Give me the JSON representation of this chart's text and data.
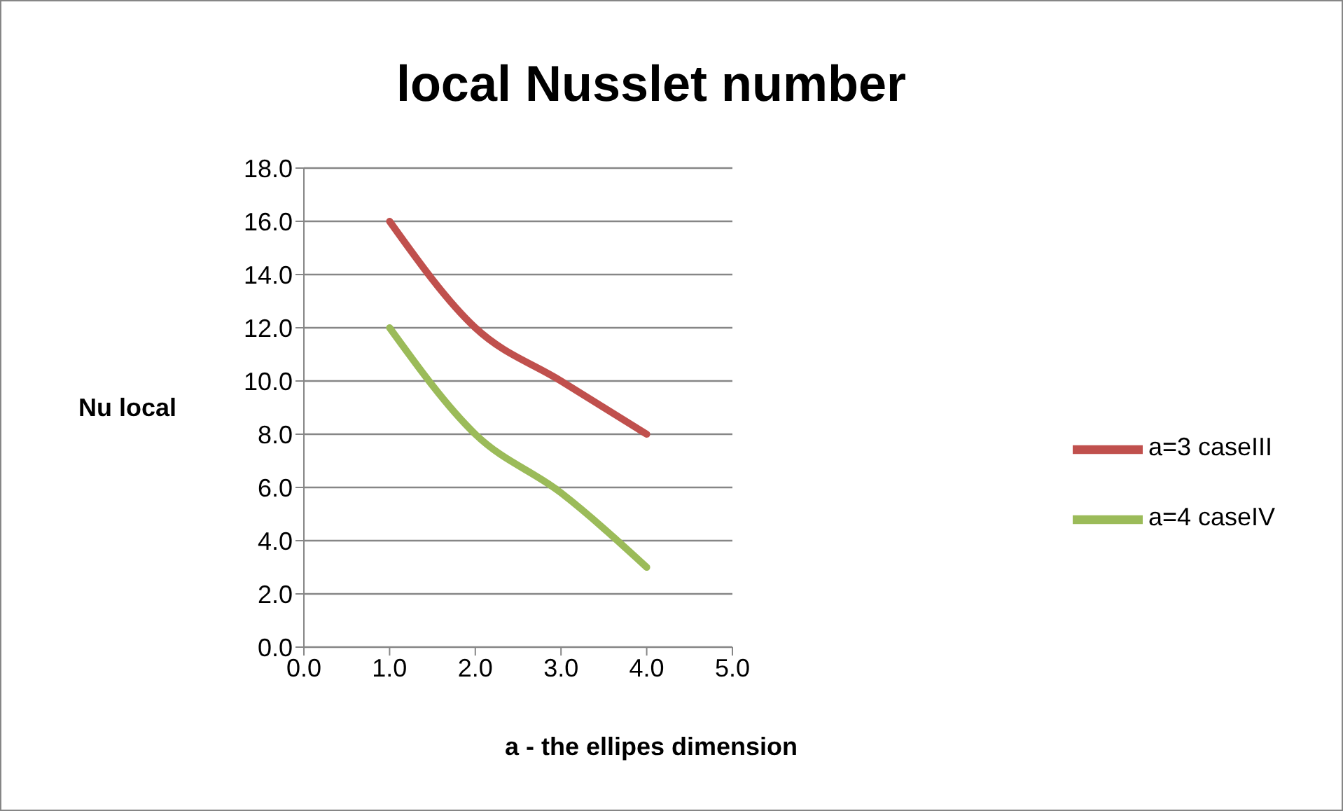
{
  "chart_data": {
    "type": "line",
    "title": "local Nusslet number",
    "xlabel": "a - the ellipes  dimension",
    "ylabel": "Nu local",
    "x": [
      1,
      2,
      3,
      4
    ],
    "series": [
      {
        "name": "a=3 caseIII",
        "color": "#c0504d",
        "values": [
          16,
          12,
          10,
          8
        ]
      },
      {
        "name": "a=4 caseIV",
        "color": "#9bbb59",
        "values": [
          12,
          8,
          5.8,
          3
        ]
      }
    ],
    "xlim": [
      0,
      5
    ],
    "xticks": [
      {
        "value": 0,
        "label": "0.0"
      },
      {
        "value": 1,
        "label": "1.0"
      },
      {
        "value": 2,
        "label": "2.0"
      },
      {
        "value": 3,
        "label": "3.0"
      },
      {
        "value": 4,
        "label": "4.0"
      },
      {
        "value": 5,
        "label": "5.0"
      }
    ],
    "ylim": [
      0,
      18
    ],
    "yticks": [
      {
        "value": 0,
        "label": "0.0"
      },
      {
        "value": 2,
        "label": "2.0"
      },
      {
        "value": 4,
        "label": "4.0"
      },
      {
        "value": 6,
        "label": "6.0"
      },
      {
        "value": 8,
        "label": "8.0"
      },
      {
        "value": 10,
        "label": "10.0"
      },
      {
        "value": 12,
        "label": "12.0"
      },
      {
        "value": 14,
        "label": "14.0"
      },
      {
        "value": 16,
        "label": "16.0"
      },
      {
        "value": 18,
        "label": "18.0"
      }
    ],
    "grid": "y",
    "legend": "right",
    "marker": "none",
    "line_style": "solid"
  }
}
